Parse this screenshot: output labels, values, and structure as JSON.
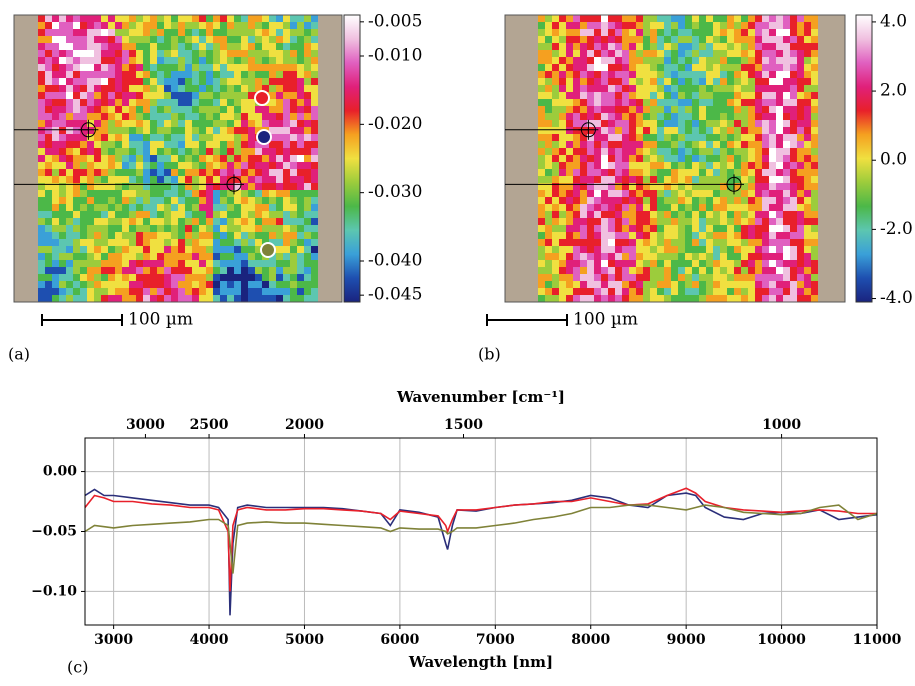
{
  "chart_data": [
    {
      "type": "heatmap",
      "panel_label": "(a)",
      "scale_bar_label": "100 µm",
      "colors": [
        "#1a237e",
        "#1e4fb0",
        "#3aa0d8",
        "#5cc6b0",
        "#4cb848",
        "#9ccc3c",
        "#f0e040",
        "#f5a020",
        "#e8202a",
        "#e0207a",
        "#e060c0",
        "#f0c0e0",
        "#ffffff"
      ],
      "clim": [
        -0.046,
        -0.004
      ],
      "colorbar_ticks": [
        -0.005,
        {
          "value": -0.01,
          "label": "-0.010"
        },
        {
          "value": -0.02,
          "label": "-0.020"
        },
        {
          "value": -0.03,
          "label": "-0.030"
        },
        {
          "value": -0.04,
          "label": "-0.040"
        },
        -0.045
      ]
    },
    {
      "type": "heatmap",
      "panel_label": "(b)",
      "scale_bar_label": "100 µm",
      "colors": [
        "#1a237e",
        "#1e4fb0",
        "#3aa0d8",
        "#5cc6b0",
        "#4cb848",
        "#9ccc3c",
        "#f0e040",
        "#f5a020",
        "#e8202a",
        "#e0207a",
        "#e060c0",
        "#f0c0e0",
        "#ffffff"
      ],
      "clim": [
        -4.1,
        4.2
      ],
      "colorbar_ticks": [
        {
          "value": 4,
          "label": "4.0"
        },
        {
          "value": 2,
          "label": "2.0"
        },
        {
          "value": 0,
          "label": "0.0"
        },
        {
          "value": -2,
          "label": "-2.0"
        },
        {
          "value": -4,
          "label": "-4.0"
        }
      ]
    },
    {
      "type": "line",
      "panel_label": "(c)",
      "x_label": "Wavelength [nm]",
      "x2_label": "Wavenumber [cm⁻¹]",
      "x": [
        2700,
        2800,
        2900,
        3000,
        3200,
        3400,
        3600,
        3800,
        4000,
        4100,
        4200,
        4220,
        4250,
        4300,
        4400,
        4600,
        4800,
        5000,
        5200,
        5400,
        5600,
        5800,
        5900,
        6000,
        6200,
        6400,
        6480,
        6500,
        6550,
        6600,
        6800,
        7000,
        7200,
        7400,
        7600,
        7800,
        8000,
        8200,
        8400,
        8600,
        8800,
        9000,
        9100,
        9200,
        9400,
        9600,
        9800,
        10000,
        10200,
        10400,
        10600,
        10800,
        11000
      ],
      "series": [
        {
          "color": "#2b2f7a",
          "values": [
            -0.02,
            -0.015,
            -0.02,
            -0.02,
            -0.022,
            -0.024,
            -0.026,
            -0.028,
            -0.028,
            -0.03,
            -0.04,
            -0.12,
            -0.06,
            -0.03,
            -0.028,
            -0.03,
            -0.03,
            -0.03,
            -0.03,
            -0.031,
            -0.033,
            -0.035,
            -0.045,
            -0.032,
            -0.034,
            -0.038,
            -0.06,
            -0.065,
            -0.045,
            -0.032,
            -0.033,
            -0.03,
            -0.028,
            -0.027,
            -0.026,
            -0.024,
            -0.02,
            -0.022,
            -0.028,
            -0.03,
            -0.02,
            -0.018,
            -0.02,
            -0.03,
            -0.038,
            -0.04,
            -0.035,
            -0.034,
            -0.035,
            -0.032,
            -0.04,
            -0.038,
            -0.036
          ]
        },
        {
          "color": "#e8202a",
          "values": [
            -0.03,
            -0.02,
            -0.022,
            -0.025,
            -0.025,
            -0.027,
            -0.028,
            -0.03,
            -0.03,
            -0.032,
            -0.05,
            -0.1,
            -0.045,
            -0.032,
            -0.03,
            -0.032,
            -0.032,
            -0.031,
            -0.031,
            -0.032,
            -0.033,
            -0.035,
            -0.04,
            -0.033,
            -0.035,
            -0.037,
            -0.045,
            -0.05,
            -0.04,
            -0.032,
            -0.032,
            -0.03,
            -0.028,
            -0.027,
            -0.025,
            -0.025,
            -0.022,
            -0.025,
            -0.028,
            -0.027,
            -0.02,
            -0.014,
            -0.018,
            -0.025,
            -0.03,
            -0.032,
            -0.033,
            -0.034,
            -0.033,
            -0.032,
            -0.033,
            -0.035,
            -0.035
          ]
        },
        {
          "color": "#7f8238",
          "values": [
            -0.05,
            -0.045,
            -0.046,
            -0.047,
            -0.045,
            -0.044,
            -0.043,
            -0.042,
            -0.04,
            -0.04,
            -0.045,
            -0.06,
            -0.085,
            -0.045,
            -0.043,
            -0.042,
            -0.043,
            -0.043,
            -0.044,
            -0.045,
            -0.046,
            -0.047,
            -0.05,
            -0.047,
            -0.048,
            -0.048,
            -0.05,
            -0.052,
            -0.05,
            -0.047,
            -0.047,
            -0.045,
            -0.043,
            -0.04,
            -0.038,
            -0.035,
            -0.03,
            -0.03,
            -0.028,
            -0.028,
            -0.03,
            -0.032,
            -0.03,
            -0.028,
            -0.03,
            -0.034,
            -0.035,
            -0.036,
            -0.035,
            -0.03,
            -0.028,
            -0.04,
            -0.035
          ]
        }
      ],
      "xlim": [
        2700,
        11000
      ],
      "xticks": [
        3000,
        4000,
        5000,
        6000,
        7000,
        8000,
        9000,
        10000,
        11000
      ],
      "x2ticks": [
        3000,
        2500,
        2000,
        1500,
        1000
      ],
      "ylim": [
        -0.128,
        0.028
      ],
      "yticks": [
        {
          "value": 0,
          "label": "0.00"
        },
        {
          "value": -0.05,
          "label": "−0.05"
        },
        {
          "value": -0.1,
          "label": "−0.10"
        }
      ],
      "grid": true
    }
  ]
}
